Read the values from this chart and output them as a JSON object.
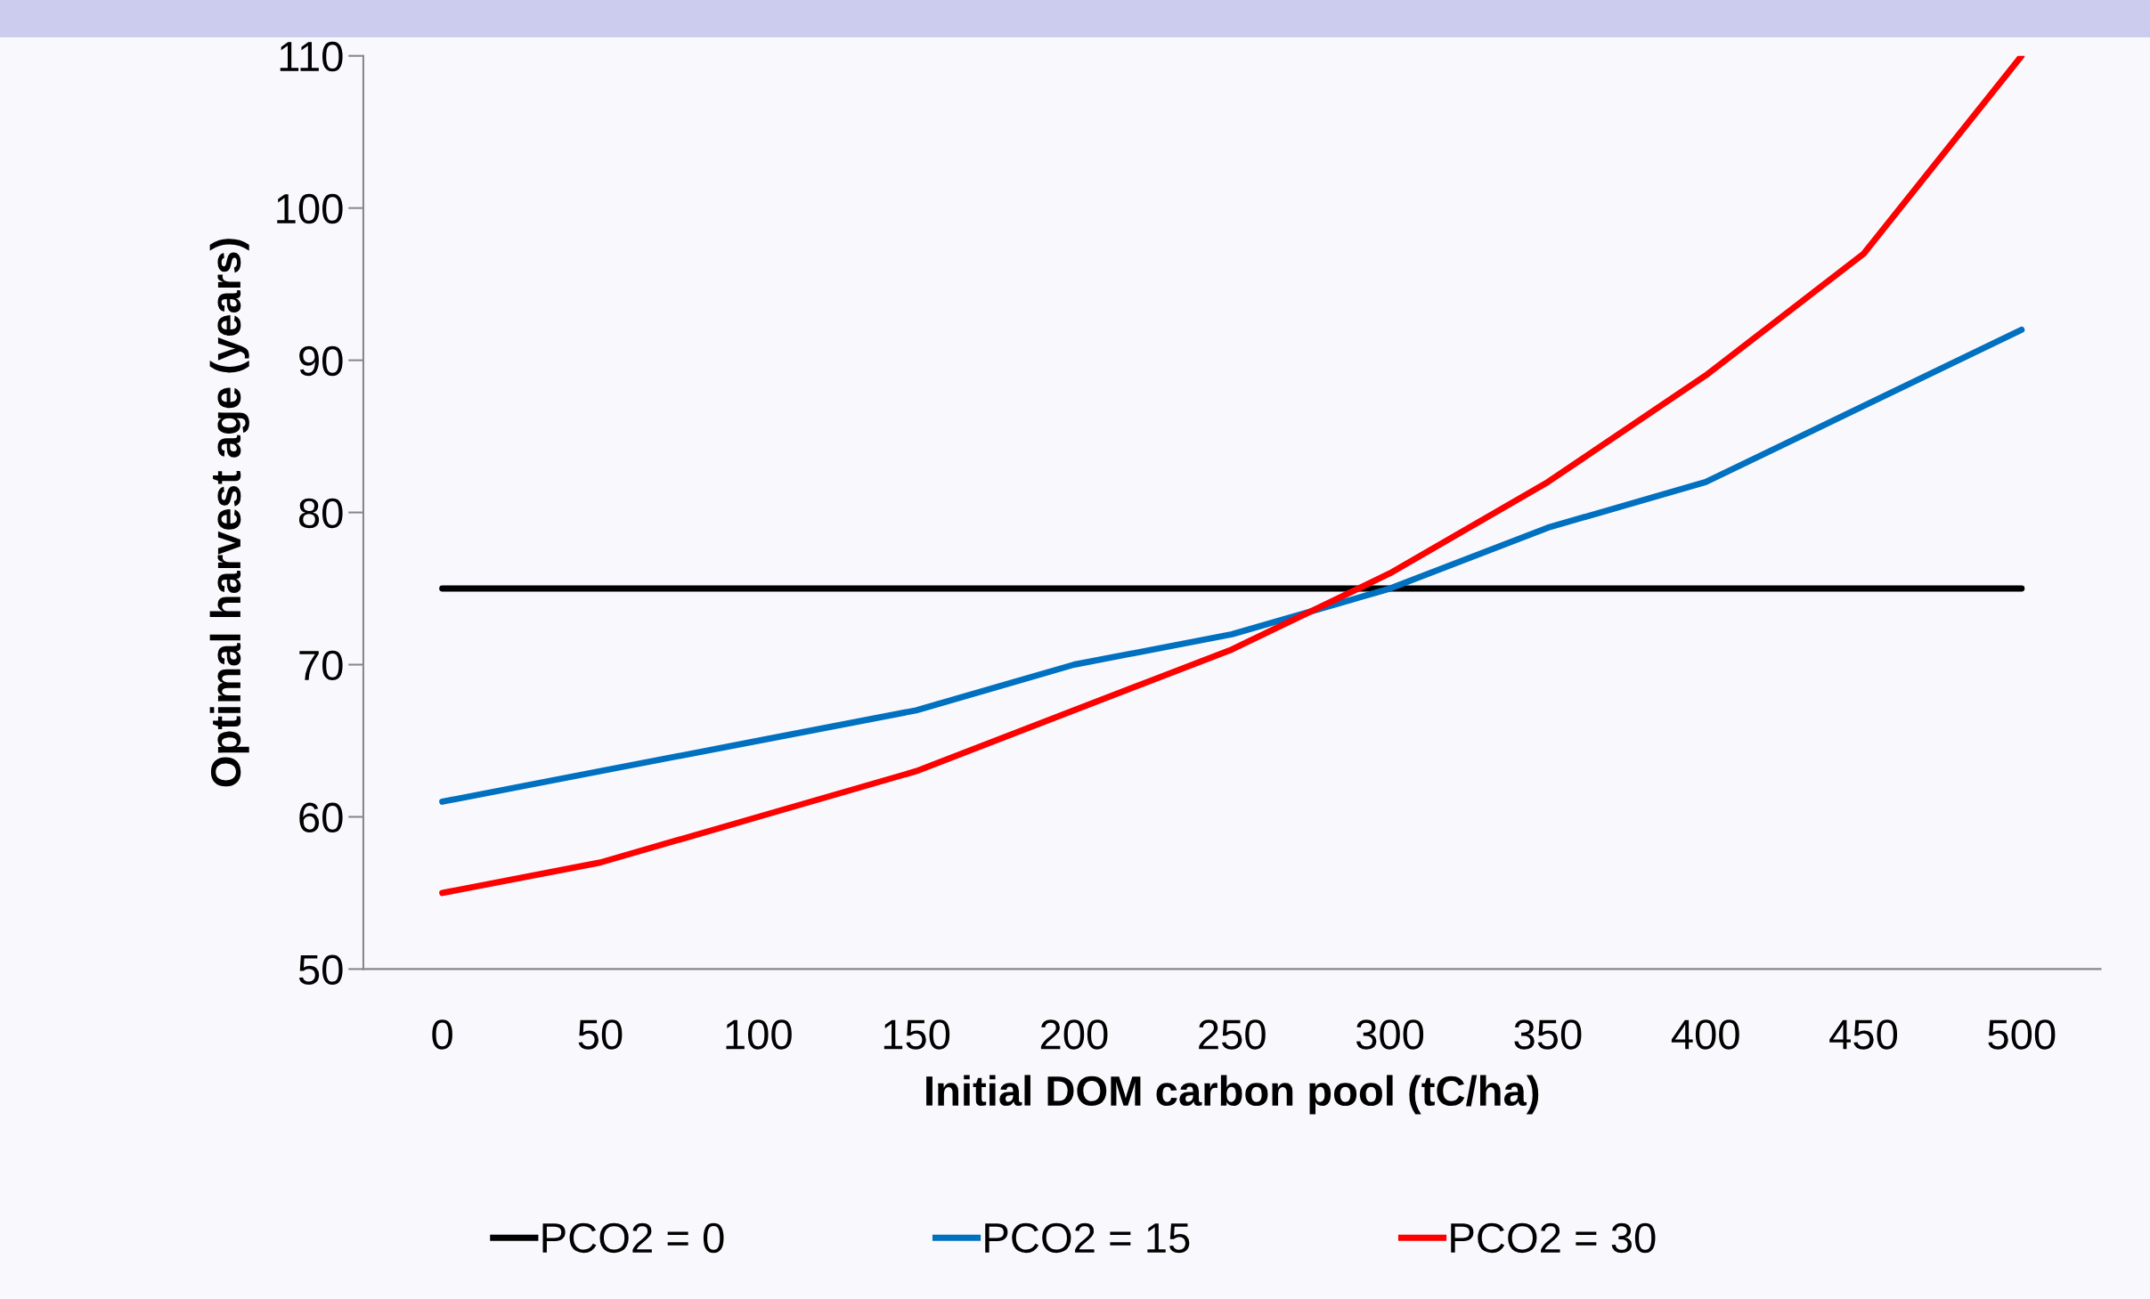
{
  "chart_data": {
    "type": "line",
    "xlabel": "Initial DOM carbon pool (tC/ha)",
    "ylabel": "Optimal harvest age (years)",
    "categories": [
      "0",
      "50",
      "100",
      "150",
      "200",
      "250",
      "300",
      "350",
      "400",
      "450",
      "500"
    ],
    "series": [
      {
        "name": "PCO2 = 0",
        "color": "#000000",
        "values": [
          75,
          75,
          75,
          75,
          75,
          75,
          75,
          75,
          75,
          75,
          75
        ]
      },
      {
        "name": "PCO2 = 15",
        "color": "#0070c0",
        "values": [
          61,
          63,
          65,
          67,
          70,
          72,
          75,
          79,
          82,
          87,
          92
        ]
      },
      {
        "name": "PCO2 = 30",
        "color": "#ff0000",
        "values": [
          55,
          57,
          60,
          63,
          67,
          71,
          76,
          82,
          89,
          97,
          110
        ]
      }
    ],
    "ylim": [
      50,
      110
    ],
    "yticks": [
      50,
      60,
      70,
      80,
      90,
      100,
      110
    ],
    "grid": false,
    "legend": "bottom",
    "marker": "none",
    "line_style": "solid"
  }
}
